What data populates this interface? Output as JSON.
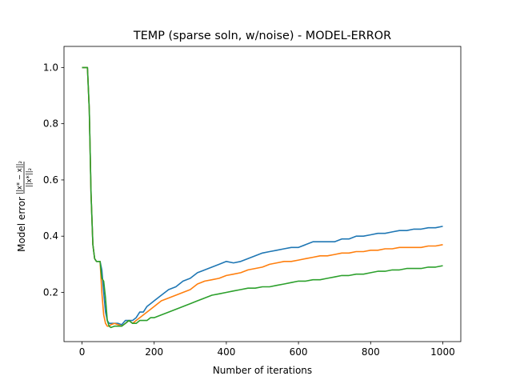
{
  "chart_data": {
    "type": "line",
    "title": "TEMP (sparse soln, w/noise) - MODEL-ERROR",
    "xlabel": "Number of iterations",
    "ylabel": {
      "prefix": "Model error",
      "numerator": "||x* − x||₂",
      "denominator": "||x*||₂"
    },
    "xlim": [
      -50,
      1050
    ],
    "ylim": [
      0.025,
      1.075
    ],
    "xticks": [
      0,
      200,
      400,
      600,
      800,
      1000
    ],
    "yticks": [
      0.2,
      0.4,
      0.6,
      0.8,
      1.0
    ],
    "xtick_labels": [
      "0",
      "200",
      "400",
      "600",
      "800",
      "1000"
    ],
    "ytick_labels": [
      "0.2",
      "0.4",
      "0.6",
      "0.8",
      "1.0"
    ],
    "grid": false,
    "legend": "none",
    "series": [
      {
        "color": "#1f77b4",
        "x": [
          0,
          15,
          20,
          25,
          30,
          35,
          40,
          45,
          50,
          55,
          60,
          65,
          70,
          75,
          80,
          90,
          100,
          110,
          120,
          130,
          140,
          150,
          160,
          170,
          180,
          190,
          200,
          220,
          240,
          260,
          280,
          300,
          320,
          340,
          360,
          380,
          400,
          420,
          440,
          460,
          480,
          500,
          520,
          540,
          560,
          580,
          600,
          620,
          640,
          660,
          680,
          700,
          720,
          740,
          760,
          780,
          800,
          820,
          840,
          860,
          880,
          900,
          920,
          940,
          960,
          980,
          1000
        ],
        "y": [
          1.0,
          1.0,
          0.85,
          0.55,
          0.37,
          0.32,
          0.31,
          0.31,
          0.31,
          0.28,
          0.2,
          0.13,
          0.1,
          0.09,
          0.09,
          0.09,
          0.09,
          0.085,
          0.1,
          0.1,
          0.1,
          0.11,
          0.13,
          0.13,
          0.15,
          0.16,
          0.17,
          0.19,
          0.21,
          0.22,
          0.24,
          0.25,
          0.27,
          0.28,
          0.29,
          0.3,
          0.31,
          0.305,
          0.31,
          0.32,
          0.33,
          0.34,
          0.345,
          0.35,
          0.355,
          0.36,
          0.36,
          0.37,
          0.38,
          0.38,
          0.38,
          0.38,
          0.39,
          0.39,
          0.4,
          0.4,
          0.405,
          0.41,
          0.41,
          0.415,
          0.42,
          0.42,
          0.425,
          0.425,
          0.43,
          0.43,
          0.435
        ]
      },
      {
        "color": "#ff7f0e",
        "x": [
          0,
          15,
          20,
          25,
          30,
          35,
          40,
          45,
          50,
          55,
          60,
          65,
          70,
          75,
          80,
          90,
          100,
          110,
          120,
          130,
          140,
          150,
          160,
          170,
          180,
          190,
          200,
          220,
          240,
          260,
          280,
          300,
          320,
          340,
          360,
          380,
          400,
          420,
          440,
          460,
          480,
          500,
          520,
          540,
          560,
          580,
          600,
          620,
          640,
          660,
          680,
          700,
          720,
          740,
          760,
          780,
          800,
          820,
          840,
          860,
          880,
          900,
          920,
          940,
          960,
          980,
          1000
        ],
        "y": [
          1.0,
          1.0,
          0.85,
          0.55,
          0.37,
          0.32,
          0.31,
          0.31,
          0.31,
          0.2,
          0.12,
          0.09,
          0.08,
          0.08,
          0.085,
          0.09,
          0.085,
          0.08,
          0.09,
          0.1,
          0.09,
          0.1,
          0.11,
          0.12,
          0.13,
          0.14,
          0.15,
          0.17,
          0.18,
          0.19,
          0.2,
          0.21,
          0.23,
          0.24,
          0.245,
          0.25,
          0.26,
          0.265,
          0.27,
          0.28,
          0.285,
          0.29,
          0.3,
          0.305,
          0.31,
          0.31,
          0.315,
          0.32,
          0.325,
          0.33,
          0.33,
          0.335,
          0.34,
          0.34,
          0.345,
          0.345,
          0.35,
          0.35,
          0.355,
          0.355,
          0.36,
          0.36,
          0.36,
          0.36,
          0.365,
          0.365,
          0.37
        ]
      },
      {
        "color": "#2ca02c",
        "x": [
          0,
          15,
          20,
          25,
          30,
          35,
          40,
          45,
          50,
          55,
          60,
          65,
          70,
          75,
          80,
          90,
          100,
          110,
          120,
          130,
          140,
          150,
          160,
          170,
          180,
          190,
          200,
          220,
          240,
          260,
          280,
          300,
          320,
          340,
          360,
          380,
          400,
          420,
          440,
          460,
          480,
          500,
          520,
          540,
          560,
          580,
          600,
          620,
          640,
          660,
          680,
          700,
          720,
          740,
          760,
          780,
          800,
          820,
          840,
          860,
          880,
          900,
          920,
          940,
          960,
          980,
          1000
        ],
        "y": [
          1.0,
          1.0,
          0.85,
          0.55,
          0.37,
          0.32,
          0.31,
          0.31,
          0.31,
          0.25,
          0.24,
          0.18,
          0.1,
          0.08,
          0.075,
          0.08,
          0.08,
          0.08,
          0.09,
          0.1,
          0.09,
          0.09,
          0.1,
          0.1,
          0.1,
          0.11,
          0.11,
          0.12,
          0.13,
          0.14,
          0.15,
          0.16,
          0.17,
          0.18,
          0.19,
          0.195,
          0.2,
          0.205,
          0.21,
          0.215,
          0.215,
          0.22,
          0.22,
          0.225,
          0.23,
          0.235,
          0.24,
          0.24,
          0.245,
          0.245,
          0.25,
          0.255,
          0.26,
          0.26,
          0.265,
          0.265,
          0.27,
          0.275,
          0.275,
          0.28,
          0.28,
          0.285,
          0.285,
          0.285,
          0.29,
          0.29,
          0.295
        ]
      }
    ]
  }
}
